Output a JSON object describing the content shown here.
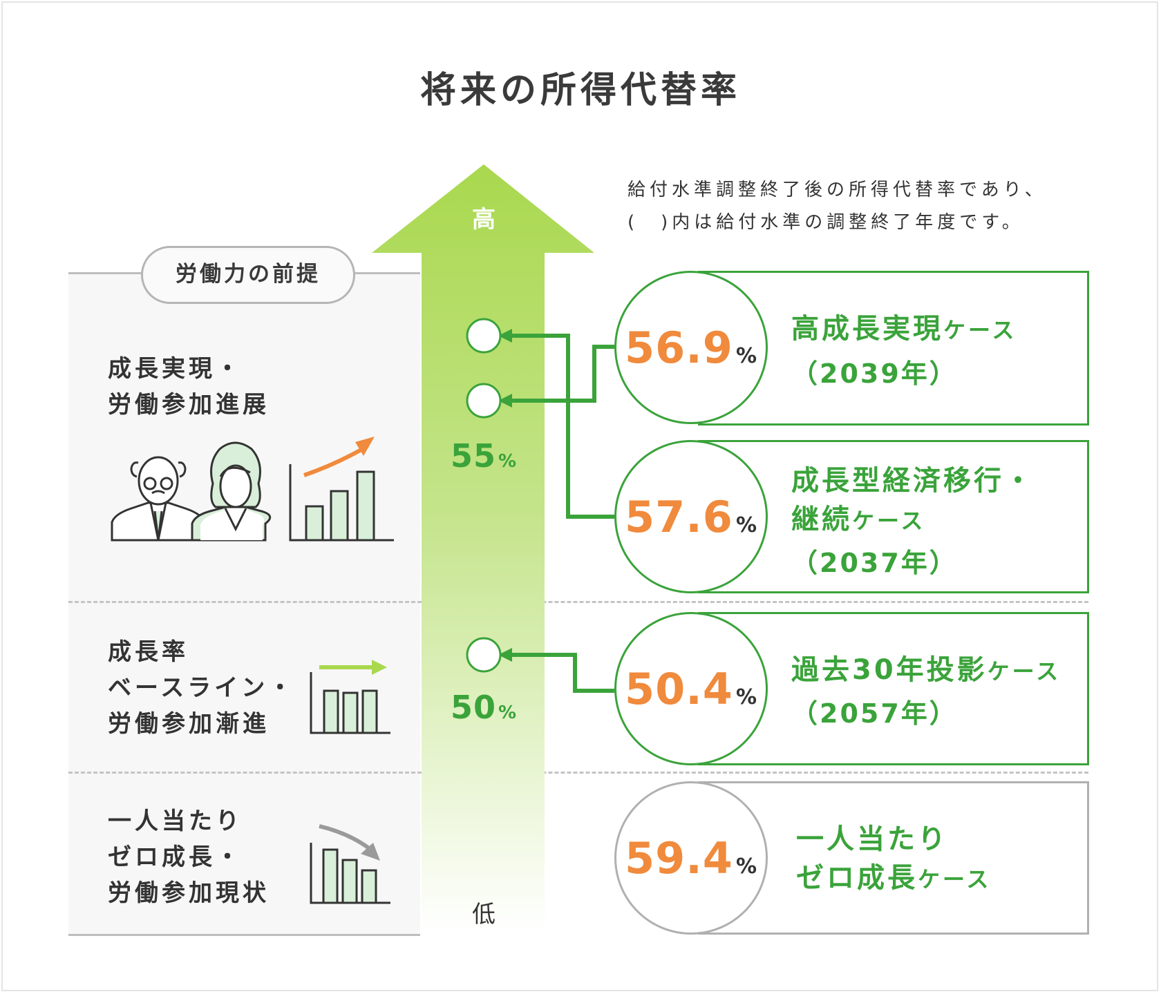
{
  "title": "将来の所得代替率",
  "note": {
    "line1": "給付水準調整終了後の所得代替率であり、",
    "line2": "(　)内は給付水準の調整終了年度です。"
  },
  "premise_label": "労働力の前提",
  "axis": {
    "high": "高",
    "low": "低",
    "gradient_top": "#a9d84e",
    "gradient_bottom": "#ffffff"
  },
  "markers": [
    {
      "value": "55",
      "unit": "%"
    },
    {
      "value": "50",
      "unit": "%"
    }
  ],
  "categories": [
    {
      "label": "成長実現・\n労働参加進展",
      "icon": "people-and-rising-bars-icon"
    },
    {
      "label": "成長率\nベースライン・\n労働参加漸進",
      "icon": "flat-bars-icon"
    },
    {
      "label": "一人当たり\nゼロ成長・\n労働参加現状",
      "icon": "declining-bars-icon"
    }
  ],
  "cases": [
    {
      "rate": "56.9",
      "unit": "%",
      "name": "高成長実現",
      "suffix": "ケース",
      "year": "（2039年）"
    },
    {
      "rate": "57.6",
      "unit": "%",
      "name_line1": "成長型経済移行・",
      "name_line2": "継続",
      "suffix": "ケース",
      "year": "（2037年）"
    },
    {
      "rate": "50.4",
      "unit": "%",
      "name": "過去30年投影",
      "suffix": "ケース",
      "year": "（2057年）"
    },
    {
      "rate": "59.4",
      "unit": "%",
      "name_line1": "一人当たり",
      "name_line2": "ゼロ成長",
      "suffix": "ケース"
    }
  ],
  "colors": {
    "green": "#3aa33a",
    "orange": "#f08a3c",
    "gray": "#b0b0b0",
    "bar_fill": "#d9efd9"
  }
}
